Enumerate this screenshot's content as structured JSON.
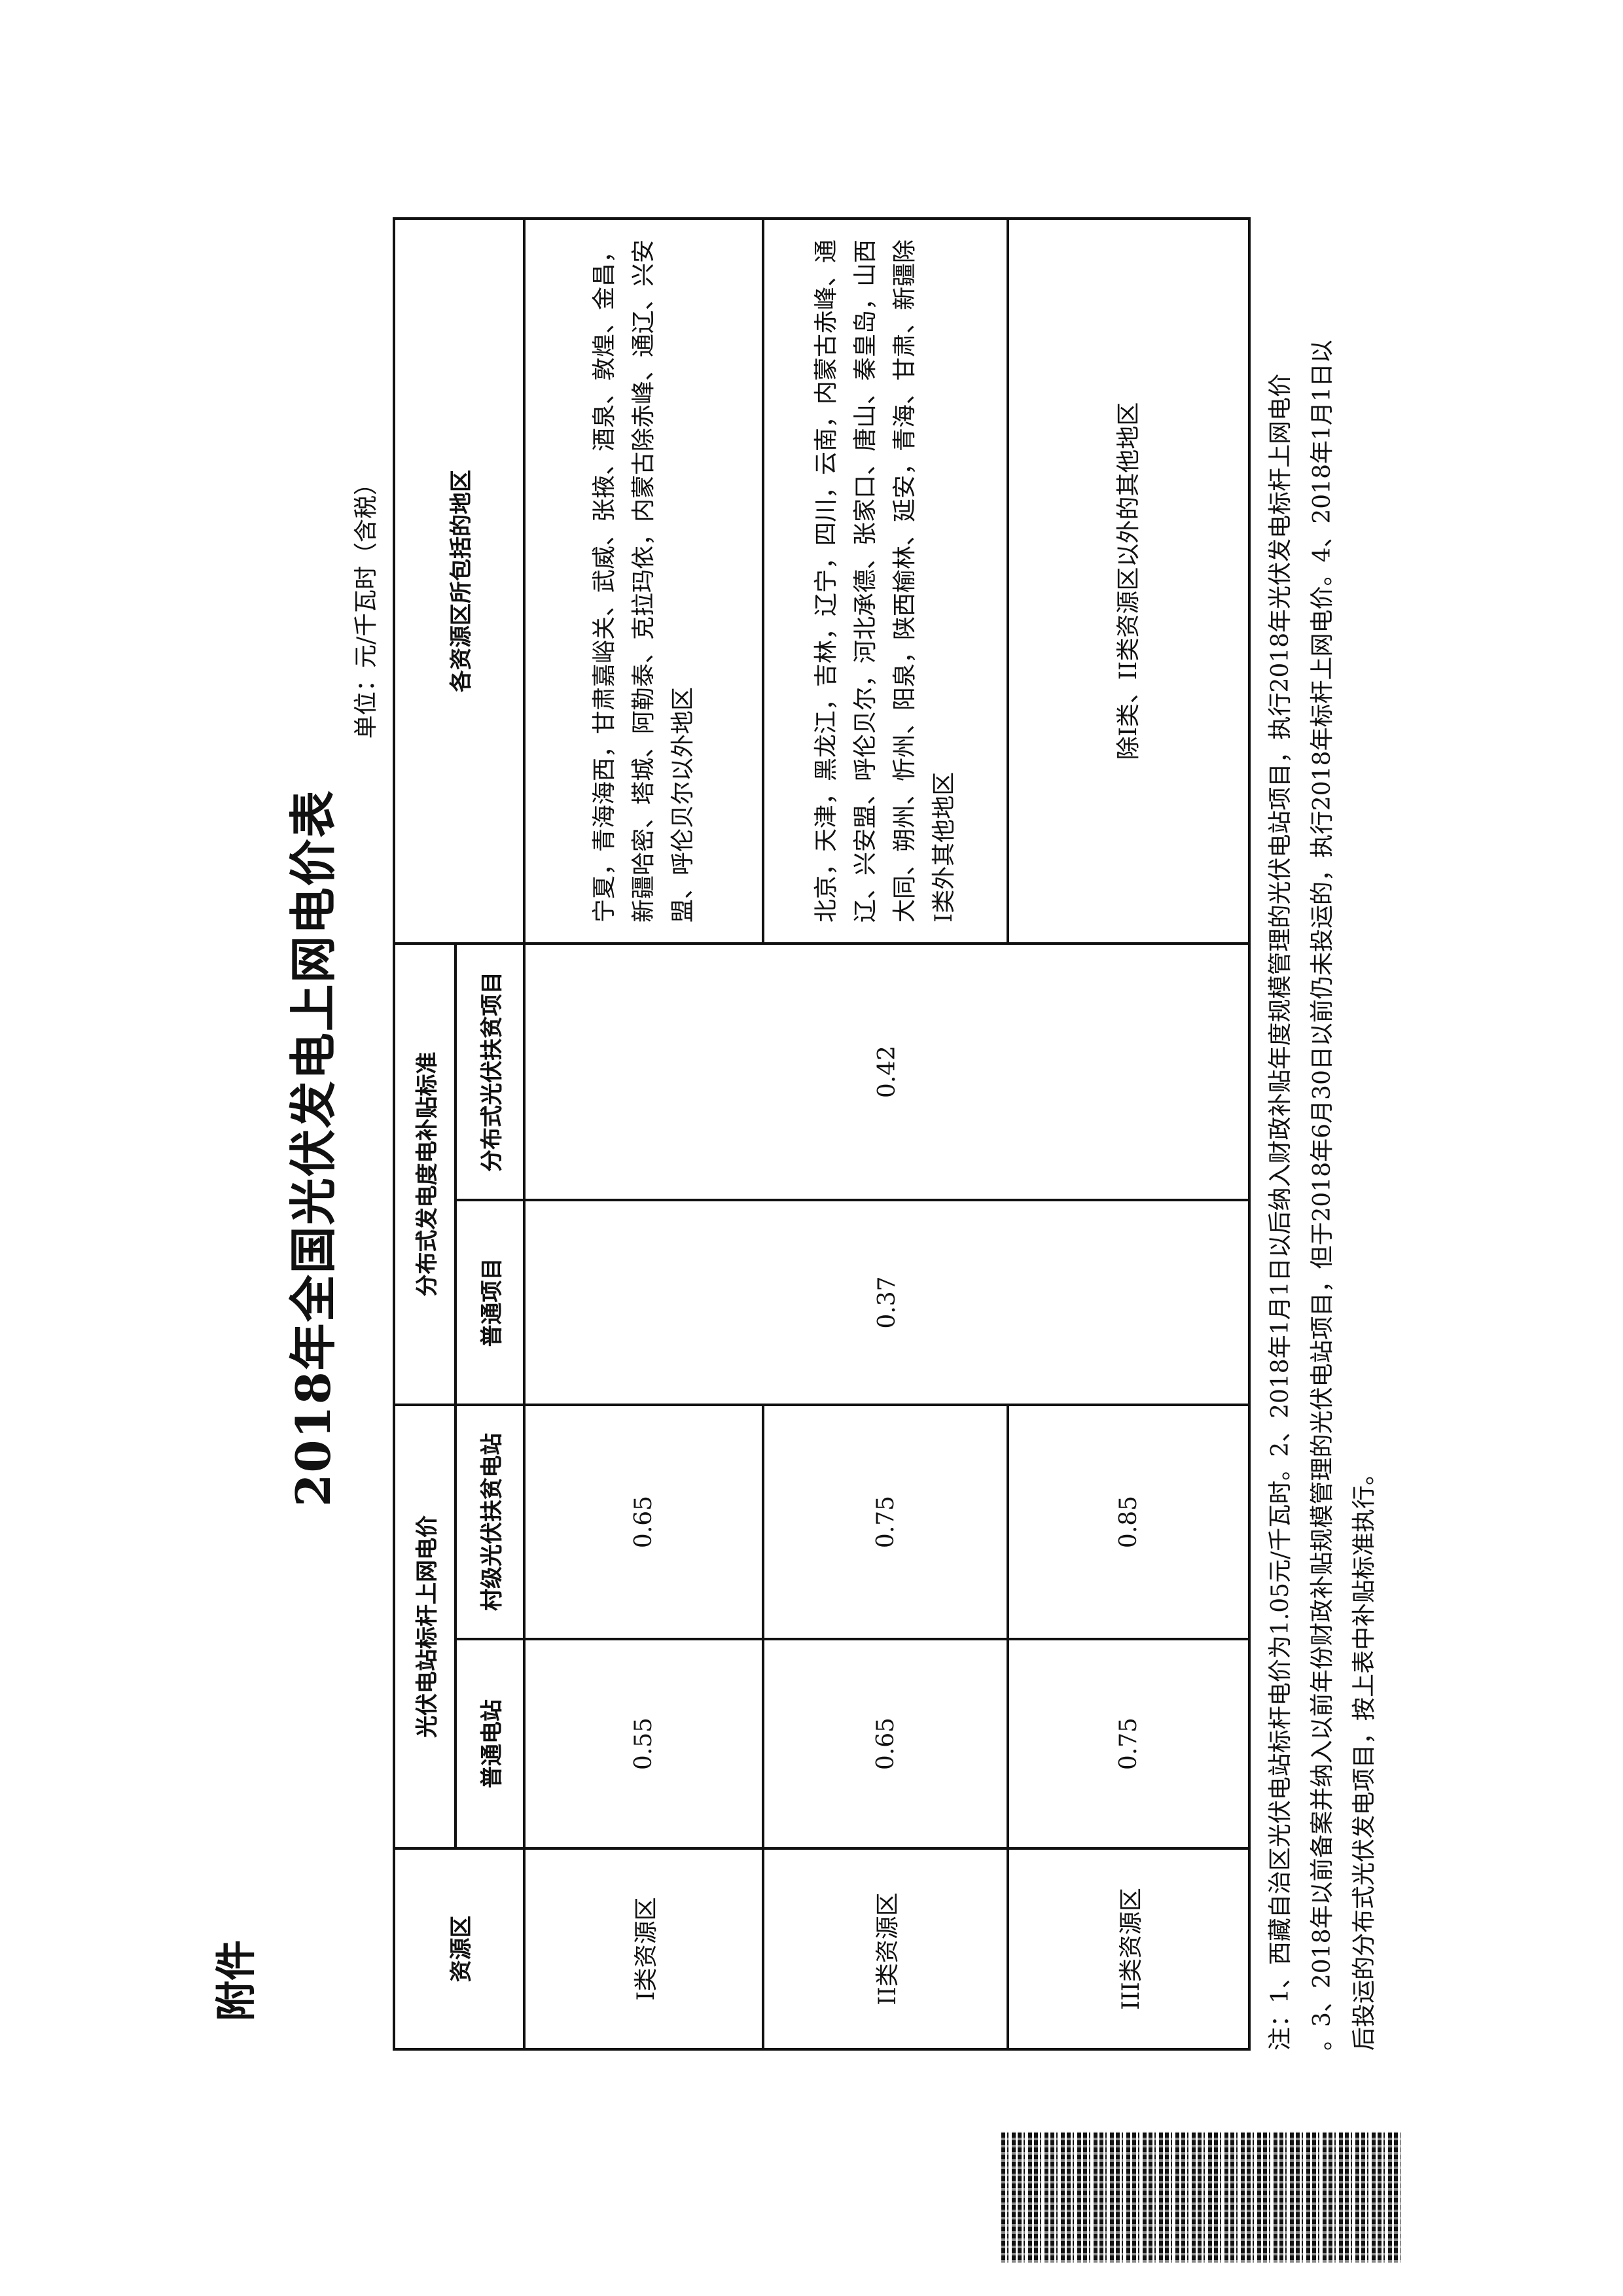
{
  "header": {
    "attachment_label": "附件"
  },
  "title": "2018年全国光伏发电上网电价表",
  "unit": "单位：元/千瓦时（含税）",
  "table": {
    "headers": {
      "resource_zone": "资源区",
      "benchmark_group": "光伏电站标杆上网电价",
      "benchmark_normal": "普通电站",
      "benchmark_poverty": "村级光伏扶贫电站",
      "subsidy_group": "分布式发电度电补贴标准",
      "subsidy_normal": "普通项目",
      "subsidy_poverty": "分布式光伏扶贫项目",
      "regions": "各资源区所包括的地区"
    },
    "rows": [
      {
        "zone": "I类资源区",
        "benchmark_normal": "0.55",
        "benchmark_poverty": "0.65",
        "regions": "宁夏，青海海西，甘肃嘉峪关、武威、张掖、酒泉、敦煌、金昌，新疆哈密、塔城、阿勒泰、克拉玛依，内蒙古除赤峰、通辽、兴安盟、呼伦贝尔以外地区"
      },
      {
        "zone": "II类资源区",
        "benchmark_normal": "0.65",
        "benchmark_poverty": "0.75",
        "regions": "北京，天津，黑龙江，吉林，辽宁，四川，云南，内蒙古赤峰、通辽、兴安盟、呼伦贝尔，河北承德、张家口、唐山、秦皇岛，山西大同、朔州、忻州、阳泉，陕西榆林、延安，青海、甘肃、新疆除I类外其他地区"
      },
      {
        "zone": "III类资源区",
        "benchmark_normal": "0.75",
        "benchmark_poverty": "0.85",
        "regions": "除I类、II类资源区以外的其他地区"
      }
    ],
    "subsidy_normal_all": "0.37",
    "subsidy_poverty_all": "0.42"
  },
  "notes": [
    "注：1、西藏自治区光伏电站标杆电价为1.05元/千瓦时。2、2018年1月1日以后纳入财政补贴年度规模管理的光伏电站项目，执行2018年光伏发电标杆上网电价",
    "。3、2018年以前备案并纳入以前年份财政补贴规模管理的光伏电站项目，但于2018年6月30日以前仍未投运的，执行2018年标杆上网电价。4、2018年1月1日以",
    "后投运的分布式光伏发电项目，按上表中补贴标准执行。"
  ]
}
